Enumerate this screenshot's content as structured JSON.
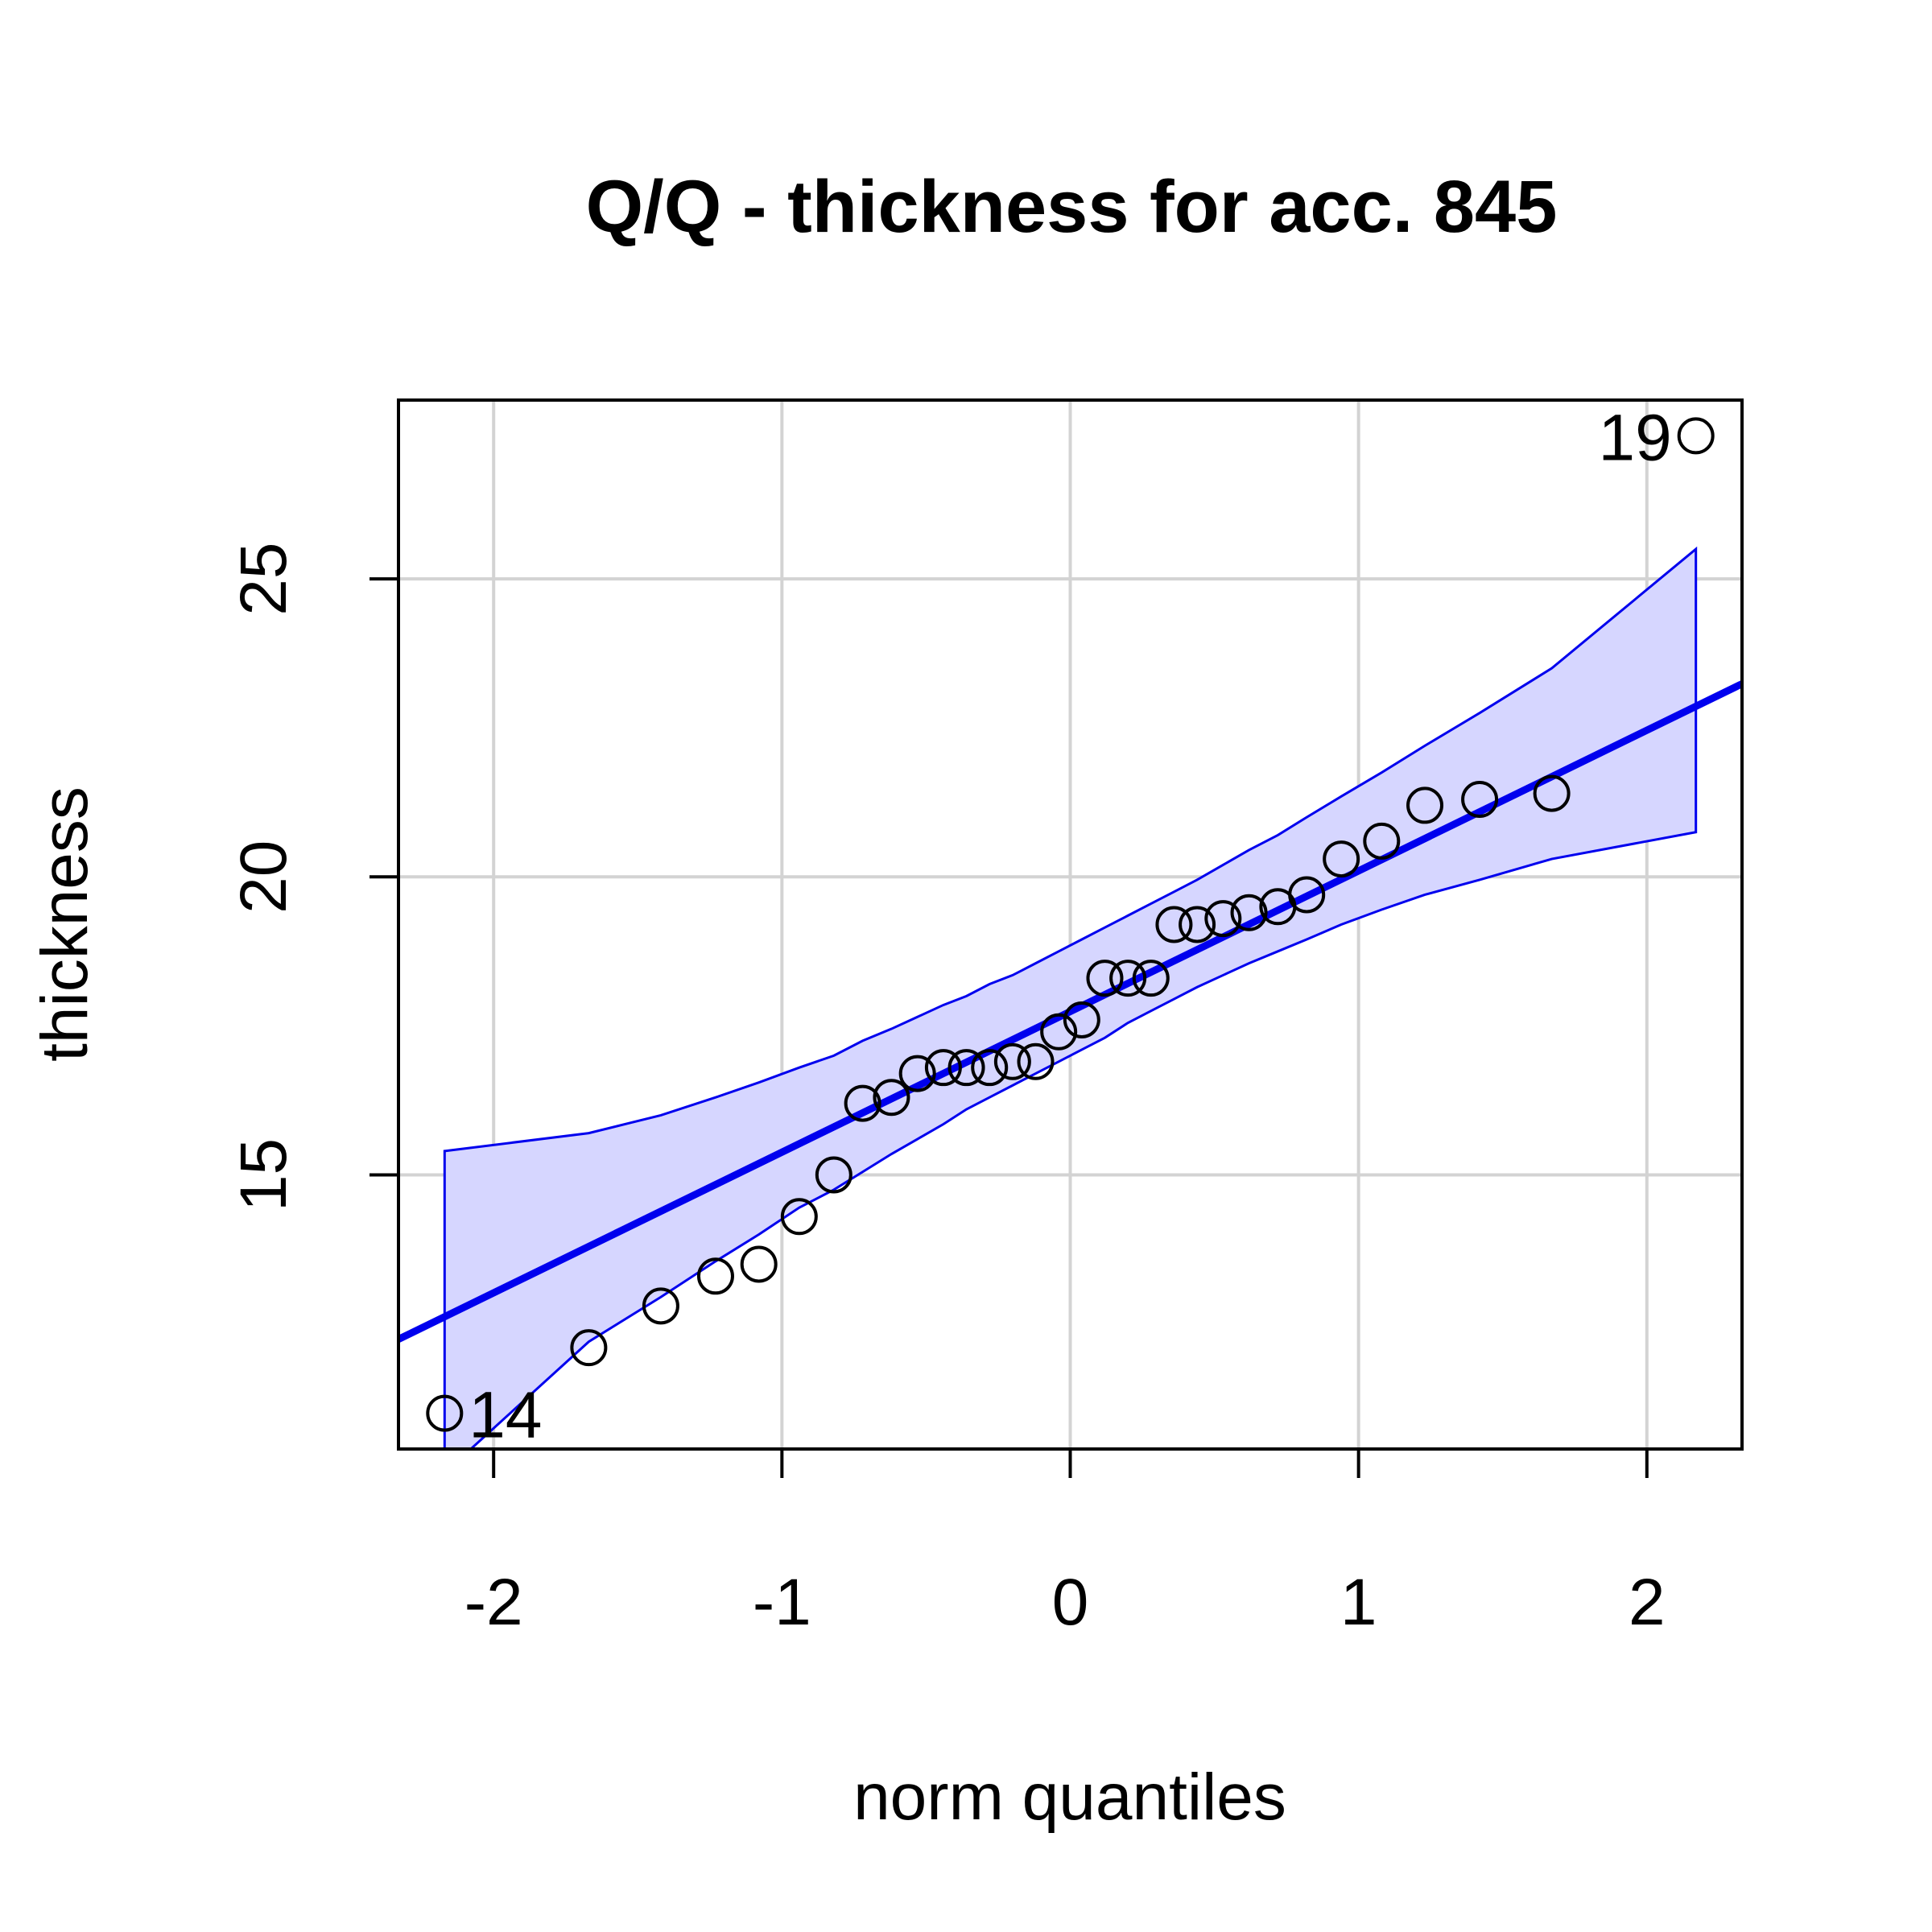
{
  "chart_data": {
    "type": "scatter",
    "title": "Q/Q - thickness for acc. 845",
    "xlabel": "norm quantiles",
    "ylabel": "thickness",
    "xlim": [
      -2.33,
      2.33
    ],
    "ylim": [
      10.4,
      28.0
    ],
    "xticks": [
      -2,
      -1,
      0,
      1,
      2
    ],
    "yticks": [
      15,
      20,
      25
    ],
    "grid": true,
    "colors": {
      "line": "#0000ee",
      "band_fill": "#d6d6ff",
      "band_edge": "#0000ee",
      "grid": "#d3d3d3",
      "points": "#000000"
    },
    "points": [
      {
        "x": -2.17,
        "y": 11.0
      },
      {
        "x": -1.67,
        "y": 12.1
      },
      {
        "x": -1.42,
        "y": 12.8
      },
      {
        "x": -1.23,
        "y": 13.3
      },
      {
        "x": -1.08,
        "y": 13.5
      },
      {
        "x": -0.94,
        "y": 14.3
      },
      {
        "x": -0.82,
        "y": 15.0
      },
      {
        "x": -0.72,
        "y": 16.2
      },
      {
        "x": -0.62,
        "y": 16.3
      },
      {
        "x": -0.53,
        "y": 16.7
      },
      {
        "x": -0.44,
        "y": 16.8
      },
      {
        "x": -0.36,
        "y": 16.8
      },
      {
        "x": -0.28,
        "y": 16.8
      },
      {
        "x": -0.2,
        "y": 16.9
      },
      {
        "x": -0.12,
        "y": 16.9
      },
      {
        "x": -0.04,
        "y": 17.4
      },
      {
        "x": 0.04,
        "y": 17.6
      },
      {
        "x": 0.12,
        "y": 18.3
      },
      {
        "x": 0.2,
        "y": 18.3
      },
      {
        "x": 0.28,
        "y": 18.3
      },
      {
        "x": 0.36,
        "y": 19.2
      },
      {
        "x": 0.44,
        "y": 19.2
      },
      {
        "x": 0.53,
        "y": 19.3
      },
      {
        "x": 0.62,
        "y": 19.4
      },
      {
        "x": 0.72,
        "y": 19.5
      },
      {
        "x": 0.82,
        "y": 19.7
      },
      {
        "x": 0.94,
        "y": 20.3
      },
      {
        "x": 1.08,
        "y": 20.6
      },
      {
        "x": 1.23,
        "y": 21.2
      },
      {
        "x": 1.42,
        "y": 21.3
      },
      {
        "x": 1.67,
        "y": 21.4
      },
      {
        "x": 2.17,
        "y": 27.4
      }
    ],
    "labeled_points": [
      {
        "label": "14",
        "x": -2.17,
        "y": 11.0,
        "side": "right"
      },
      {
        "label": "19",
        "x": 2.17,
        "y": 27.4,
        "side": "left"
      }
    ],
    "reference_line": {
      "intercept": 17.74,
      "slope": 2.36
    },
    "confidence_band": {
      "x": [
        -2.17,
        -1.67,
        -1.42,
        -1.23,
        -1.08,
        -0.94,
        -0.82,
        -0.72,
        -0.62,
        -0.53,
        -0.44,
        -0.36,
        -0.28,
        -0.2,
        -0.12,
        -0.04,
        0.04,
        0.12,
        0.2,
        0.28,
        0.36,
        0.44,
        0.53,
        0.62,
        0.72,
        0.82,
        0.94,
        1.08,
        1.23,
        1.42,
        1.67,
        2.17
      ],
      "upper": [
        15.4,
        15.7,
        16.0,
        16.3,
        16.55,
        16.8,
        17.0,
        17.25,
        17.45,
        17.65,
        17.85,
        18.0,
        18.2,
        18.35,
        18.55,
        18.75,
        18.95,
        19.15,
        19.35,
        19.55,
        19.75,
        19.95,
        20.2,
        20.45,
        20.7,
        21.0,
        21.35,
        21.75,
        22.2,
        22.75,
        23.5,
        25.5
      ],
      "lower": [
        10.0,
        12.2,
        12.95,
        13.55,
        14.0,
        14.45,
        14.75,
        15.05,
        15.35,
        15.6,
        15.85,
        16.1,
        16.3,
        16.5,
        16.7,
        16.9,
        17.1,
        17.3,
        17.55,
        17.75,
        17.95,
        18.15,
        18.35,
        18.55,
        18.75,
        18.95,
        19.2,
        19.45,
        19.7,
        19.95,
        20.3,
        20.75
      ]
    }
  }
}
